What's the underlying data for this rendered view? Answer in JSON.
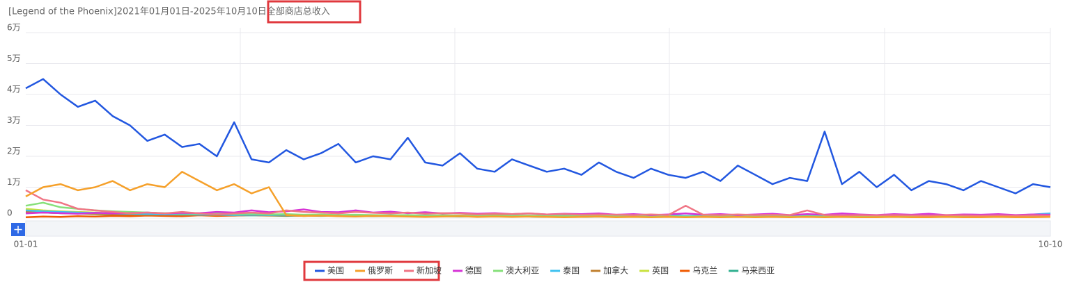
{
  "chart_data": {
    "type": "line",
    "title": "[Legend of the Phoenix]2021年01月01日-2025年10月10日全部商店总收入",
    "categories": [
      "01-01",
      null,
      null,
      null,
      null,
      null,
      null,
      null,
      null,
      null,
      null,
      null,
      null,
      null,
      null,
      null,
      null,
      null,
      null,
      null,
      null,
      null,
      null,
      null,
      null,
      null,
      null,
      null,
      null,
      null,
      null,
      null,
      null,
      null,
      null,
      null,
      null,
      null,
      null,
      null,
      null,
      null,
      null,
      null,
      null,
      null,
      null,
      null,
      null,
      null,
      null,
      null,
      null,
      null,
      null,
      null,
      null,
      null,
      null,
      "10-10"
    ],
    "ylim": [
      0,
      60000
    ],
    "yticks": [
      0,
      {
        "value": 10000,
        "label": "1万"
      },
      {
        "value": 20000,
        "label": "2万"
      },
      {
        "value": 30000,
        "label": "3万"
      },
      {
        "value": 40000,
        "label": "4万"
      },
      {
        "value": 50000,
        "label": "5万"
      },
      {
        "value": 60000,
        "label": "6万"
      }
    ],
    "grid": true,
    "series": [
      {
        "name": "美国",
        "color": "#2257e0",
        "values": [
          42000,
          45000,
          40000,
          36000,
          38000,
          33000,
          30000,
          25000,
          27000,
          23000,
          24000,
          20000,
          31000,
          19000,
          18000,
          22000,
          19000,
          21000,
          24000,
          18000,
          20000,
          19000,
          26000,
          18000,
          17000,
          21000,
          16000,
          15000,
          19000,
          17000,
          15000,
          16000,
          14000,
          18000,
          15000,
          13000,
          16000,
          14000,
          13000,
          15000,
          12000,
          17000,
          14000,
          11000,
          13000,
          12000,
          28000,
          11000,
          15000,
          10000,
          14000,
          9000,
          12000,
          11000,
          9000,
          12000,
          10000,
          8000,
          11000,
          10000
        ]
      },
      {
        "name": "俄罗斯",
        "color": "#f5a02a",
        "values": [
          7000,
          10000,
          11000,
          9000,
          10000,
          12000,
          9000,
          11000,
          10000,
          15000,
          12000,
          9000,
          11000,
          8000,
          10000,
          1000,
          700,
          800,
          600,
          500,
          700,
          600,
          500,
          400,
          500,
          600,
          400,
          500,
          400,
          500,
          400,
          300,
          400,
          500,
          300,
          400,
          300,
          400,
          300,
          400,
          300,
          400,
          300,
          400,
          300,
          400,
          300,
          400,
          300,
          300,
          400,
          300,
          300,
          400,
          300,
          300,
          400,
          300,
          300,
          400
        ]
      },
      {
        "name": "新加坡",
        "color": "#f07585",
        "values": [
          9000,
          6000,
          5000,
          3000,
          2500,
          2000,
          1500,
          1800,
          1500,
          2000,
          1500,
          1200,
          1500,
          1800,
          1500,
          2500,
          2000,
          1800,
          1500,
          2000,
          1700,
          1500,
          1800,
          1400,
          1600,
          1500,
          1200,
          1400,
          1300,
          1500,
          1200,
          1300,
          1100,
          1200,
          1100,
          1000,
          1200,
          1000,
          4000,
          1100,
          1000,
          1200,
          1000,
          1100,
          1000,
          2500,
          1000,
          900,
          1000,
          900,
          1000,
          900,
          800,
          1000,
          900,
          800,
          900,
          800,
          900,
          800
        ]
      },
      {
        "name": "德国",
        "color": "#d633d6",
        "values": [
          1500,
          1800,
          1600,
          1400,
          1700,
          1500,
          1600,
          1800,
          1500,
          1700,
          1600,
          2000,
          1800,
          2500,
          1900,
          2200,
          2800,
          2000,
          1900,
          2500,
          1800,
          2100,
          1600,
          1900,
          1500,
          1700,
          1400,
          1600,
          1300,
          1500,
          1200,
          1400,
          1300,
          1500,
          1100,
          1300,
          1000,
          1200,
          1500,
          1100,
          1300,
          1000,
          1200,
          1400,
          1000,
          1300,
          1100,
          1500,
          1200,
          1000,
          1300,
          1100,
          1400,
          1000,
          1200,
          1100,
          1300,
          1000,
          1200,
          1100
        ]
      },
      {
        "name": "澳大利亚",
        "color": "#86e07a",
        "values": [
          4000,
          5000,
          3500,
          3000,
          2500,
          2200,
          2000,
          1800,
          1600,
          1500,
          1400,
          1500,
          1300,
          1400,
          1200,
          1300,
          1100,
          1200,
          1000,
          1100,
          1000,
          900,
          1000,
          800,
          900,
          800,
          700,
          800,
          700,
          800,
          700,
          600,
          700,
          600,
          700,
          600,
          700,
          600,
          500,
          600,
          500,
          600,
          500,
          600,
          500,
          600,
          500,
          600,
          500,
          500,
          600,
          500,
          500,
          600,
          500,
          500,
          600,
          500,
          500,
          600
        ]
      },
      {
        "name": "泰国",
        "color": "#3ec1f0",
        "values": [
          2500,
          2200,
          2000,
          1800,
          1700,
          1500,
          1400,
          1300,
          1200,
          1300,
          1100,
          1200,
          1000,
          1100,
          1000,
          1100,
          900,
          1000,
          900,
          1000,
          800,
          900,
          800,
          900,
          800,
          700,
          800,
          700,
          800,
          700,
          900,
          700,
          800,
          700,
          800,
          700,
          800,
          1000,
          700,
          800,
          700,
          900,
          700,
          800,
          900,
          700,
          800,
          900,
          700,
          800,
          900,
          1000,
          800,
          900,
          1000,
          800,
          1100,
          900,
          1200,
          1500
        ]
      },
      {
        "name": "加拿大",
        "color": "#c07f2e",
        "values": [
          2000,
          1800,
          1600,
          1500,
          1400,
          1300,
          1200,
          1100,
          1200,
          1000,
          1100,
          1000,
          900,
          1000,
          900,
          800,
          900,
          800,
          700,
          800,
          700,
          800,
          700,
          600,
          700,
          600,
          700,
          600,
          500,
          600,
          500,
          600,
          500,
          600,
          500,
          400,
          500,
          400,
          500,
          400,
          500,
          400,
          500,
          400,
          500,
          400,
          500,
          400,
          500,
          400,
          400,
          500,
          400,
          400,
          500,
          400,
          400,
          500,
          400,
          500
        ]
      },
      {
        "name": "英国",
        "color": "#c9e23f",
        "values": [
          3000,
          2500,
          2200,
          2000,
          1800,
          1600,
          1500,
          1400,
          1300,
          1200,
          1100,
          1000,
          1100,
          1000,
          900,
          1000,
          900,
          800,
          900,
          800,
          700,
          800,
          700,
          800,
          700,
          600,
          700,
          600,
          700,
          600,
          500,
          600,
          500,
          600,
          500,
          600,
          500,
          600,
          500,
          600,
          500,
          600,
          500,
          600,
          500,
          600,
          500,
          600,
          500,
          500,
          600,
          500,
          500,
          600,
          500,
          500,
          600,
          500,
          500,
          600
        ]
      },
      {
        "name": "乌克兰",
        "color": "#f05a00",
        "values": [
          300,
          500,
          400,
          600,
          500,
          700,
          600,
          800,
          700,
          600,
          900,
          700,
          800,
          1000,
          800,
          900,
          700,
          800,
          1000,
          800,
          700,
          900,
          800,
          700,
          900,
          800,
          700,
          900,
          800,
          700,
          600,
          800,
          700,
          600,
          800,
          700,
          600,
          800,
          700,
          600,
          700,
          800,
          600,
          700,
          600,
          800,
          700,
          600,
          700,
          800,
          600,
          700,
          800,
          600,
          700,
          600,
          800,
          700,
          600,
          700
        ]
      },
      {
        "name": "马来西亚",
        "color": "#30b090",
        "values": [
          2000,
          1800,
          1600,
          1500,
          1300,
          1200,
          1100,
          1000,
          1100,
          900,
          1000,
          900,
          800,
          900,
          800,
          700,
          800,
          700,
          800,
          700,
          600,
          700,
          600,
          700,
          600,
          500,
          600,
          500,
          600,
          500,
          400,
          500,
          400,
          500,
          400,
          500,
          400,
          500,
          400,
          500,
          400,
          500,
          400,
          500,
          400,
          500,
          400,
          500,
          400,
          400,
          500,
          400,
          400,
          500,
          400,
          400,
          500,
          400,
          400,
          500
        ]
      }
    ]
  }
}
